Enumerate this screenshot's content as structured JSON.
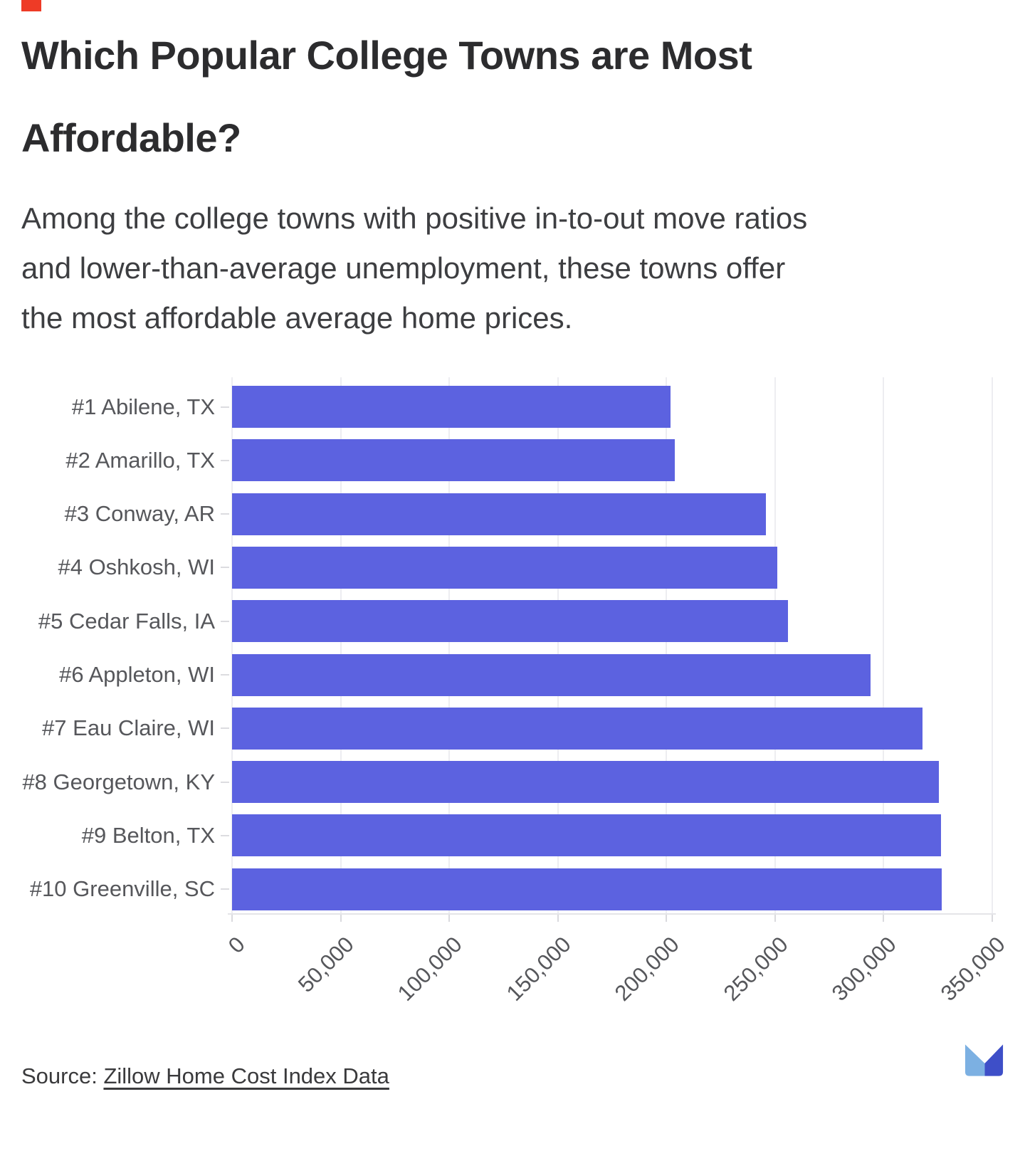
{
  "header": {
    "accent_color": "#ee3b26",
    "title": "Which Popular College Towns are Most Affordable?",
    "title_lines": [
      "Which Popular College Towns are Most",
      "Affordable?"
    ],
    "subtitle": "Among the college towns with positive in-to-out move ratios and lower-than-average unemployment, these towns offer the most affordable average home prices.",
    "subtitle_lines": [
      "Among the college towns with positive in-to-out move ratios",
      "and lower-than-average unemployment, these towns offer",
      "the most affordable average home prices."
    ]
  },
  "chart_data": {
    "type": "bar",
    "orientation": "horizontal",
    "categories": [
      "#1 Abilene, TX",
      "#2 Amarillo, TX",
      "#3 Conway, AR",
      "#4 Oshkosh, WI",
      "#5 Cedar Falls, IA",
      "#6 Appleton, WI",
      "#7 Eau Claire, WI",
      "#8 Georgetown, KY",
      "#9 Belton, TX",
      "#10 Greenville, SC"
    ],
    "values": [
      202000,
      204000,
      246000,
      251000,
      256000,
      294000,
      318000,
      325500,
      326500,
      327000
    ],
    "xlim": [
      0,
      350000
    ],
    "xticks": [
      0,
      50000,
      100000,
      150000,
      200000,
      250000,
      300000,
      350000
    ],
    "xtick_labels": [
      "0",
      "50,000",
      "100,000",
      "150,000",
      "200,000",
      "250,000",
      "300,000",
      "350,000"
    ],
    "bar_color": "#5c62e0",
    "gridline_color": "#ededf1",
    "grid": "vertical",
    "legend": "none"
  },
  "footer": {
    "source_prefix": "Source: ",
    "source_link": "Zillow Home Cost Index Data",
    "logo": {
      "name": "movebuddha-mark",
      "light": "#7cb0e2",
      "dark": "#3e4fc8"
    }
  }
}
